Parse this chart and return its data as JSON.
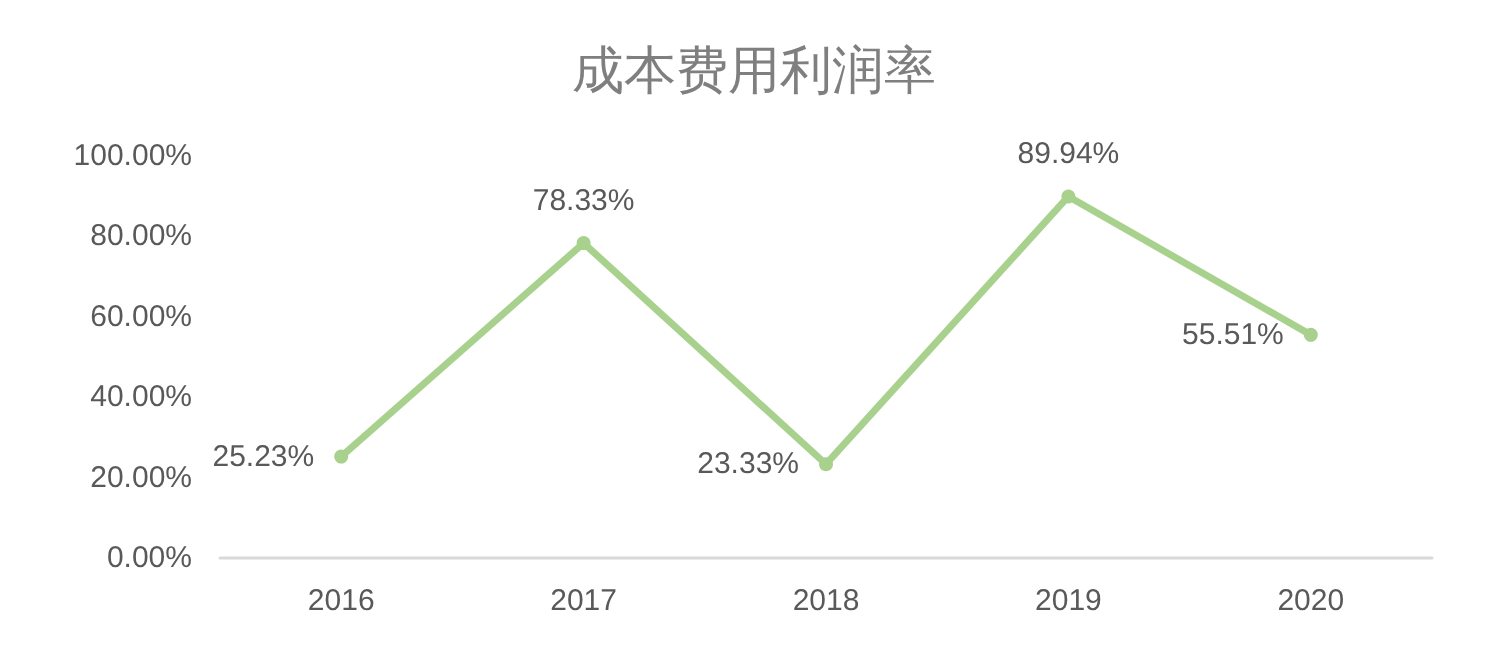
{
  "chart_data": {
    "type": "line",
    "title": "成本费用利润率",
    "categories": [
      "2016",
      "2017",
      "2018",
      "2019",
      "2020"
    ],
    "series": [
      {
        "color": "#a9d18e",
        "values": [
          25.23,
          78.33,
          23.33,
          89.94,
          55.51
        ],
        "value_labels": [
          "25.23%",
          "78.33%",
          "23.33%",
          "89.94%",
          "55.51%"
        ]
      }
    ],
    "ylim": [
      0,
      100
    ],
    "yticks": [
      {
        "value": 0,
        "label": "0.00%"
      },
      {
        "value": 20,
        "label": "20.00%"
      },
      {
        "value": 40,
        "label": "40.00%"
      },
      {
        "value": 60,
        "label": "60.00%"
      },
      {
        "value": 80,
        "label": "80.00%"
      },
      {
        "value": 100,
        "label": "100.00%"
      }
    ],
    "grid": false,
    "marker": "circle",
    "line_style": "solid"
  }
}
